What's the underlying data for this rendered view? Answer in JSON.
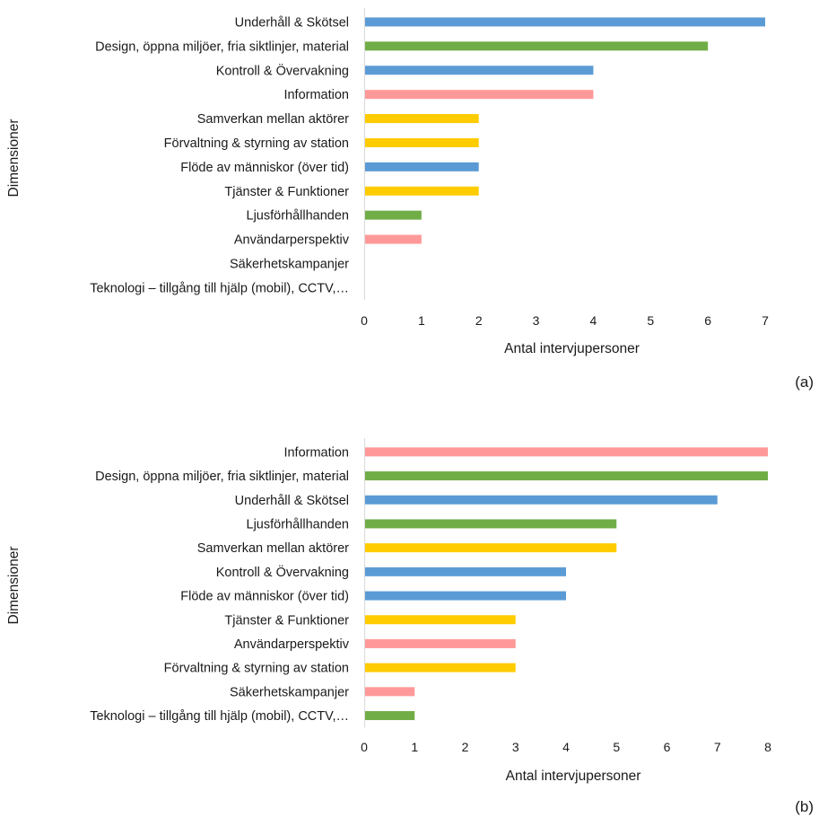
{
  "colors": {
    "blue": "#5B9BD5",
    "green": "#70AD47",
    "pink": "#FF9999",
    "yellow": "#FFCC00"
  },
  "chart_data": [
    {
      "type": "bar",
      "orientation": "horizontal",
      "panel_label": "(a)",
      "xlabel": "Antal intervjupersoner",
      "ylabel": "Dimensioner",
      "xlim": [
        0,
        7
      ],
      "xticks": [
        "0",
        "1",
        "2",
        "3",
        "4",
        "5",
        "6",
        "7"
      ],
      "grid": false,
      "legend": "none",
      "categories": [
        "Underhåll & Skötsel",
        "Design, öppna miljöer, fria siktlinjer, material",
        "Kontroll & Övervakning",
        "Information",
        "Samverkan mellan aktörer",
        "Förvaltning & styrning av station",
        "Flöde av människor (över tid)",
        "Tjänster & Funktioner",
        "Ljusförhållhanden",
        "Användarperspektiv",
        "Säkerhetskampanjer",
        "Teknologi – tillgång till hjälp (mobil), CCTV,…"
      ],
      "values": [
        7,
        6,
        4,
        4,
        2,
        2,
        2,
        2,
        1,
        1,
        0,
        0
      ],
      "bar_colors": [
        "blue",
        "green",
        "blue",
        "pink",
        "yellow",
        "yellow",
        "blue",
        "yellow",
        "green",
        "pink",
        "green",
        "green"
      ]
    },
    {
      "type": "bar",
      "orientation": "horizontal",
      "panel_label": "(b)",
      "xlabel": "Antal intervjupersoner",
      "ylabel": "Dimensioner",
      "xlim": [
        0,
        8
      ],
      "xticks": [
        "0",
        "1",
        "2",
        "3",
        "4",
        "5",
        "6",
        "7",
        "8"
      ],
      "grid": false,
      "legend": "none",
      "categories": [
        "Information",
        "Design, öppna miljöer, fria siktlinjer, material",
        "Underhåll & Skötsel",
        "Ljusförhållhanden",
        "Samverkan mellan aktörer",
        "Kontroll & Övervakning",
        "Flöde av människor (över tid)",
        "Tjänster & Funktioner",
        "Användarperspektiv",
        "Förvaltning & styrning av station",
        "Säkerhetskampanjer",
        "Teknologi – tillgång till hjälp (mobil), CCTV,…"
      ],
      "values": [
        8,
        8,
        7,
        5,
        5,
        4,
        4,
        3,
        3,
        3,
        1,
        1
      ],
      "bar_colors": [
        "pink",
        "green",
        "blue",
        "green",
        "yellow",
        "blue",
        "blue",
        "yellow",
        "pink",
        "yellow",
        "pink",
        "green"
      ]
    }
  ]
}
